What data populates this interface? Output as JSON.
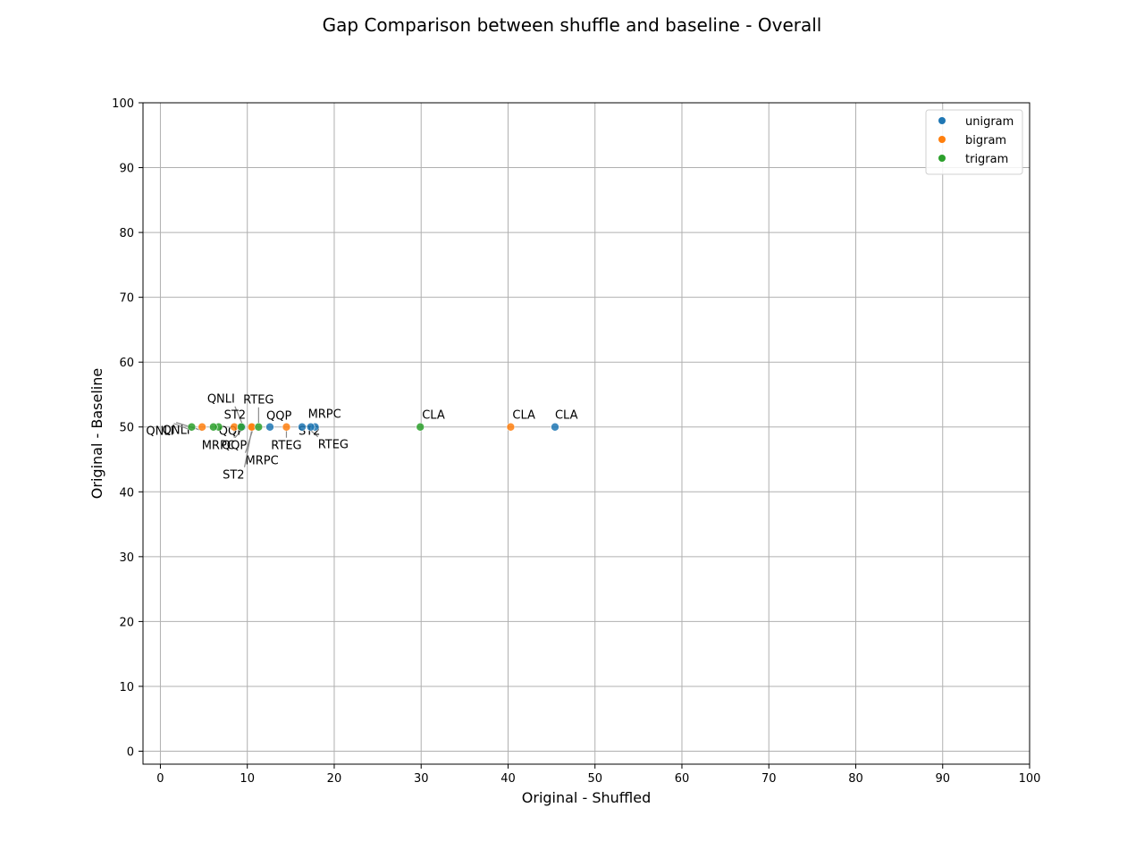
{
  "chart_data": {
    "type": "scatter",
    "title": "Gap Comparison between shuffle and baseline - Overall",
    "xlabel": "Original - Shuffled",
    "ylabel": "Original - Baseline",
    "xlim": [
      -2,
      100
    ],
    "ylim": [
      -2,
      100
    ],
    "xticks": [
      "0",
      "10",
      "20",
      "30",
      "40",
      "50",
      "60",
      "70",
      "80",
      "90",
      "100"
    ],
    "yticks": [
      "0",
      "10",
      "20",
      "30",
      "40",
      "50",
      "60",
      "70",
      "80",
      "90",
      "100"
    ],
    "grid": true,
    "legend_position": "top-right",
    "series": [
      {
        "name": "unigram",
        "color": "#1f77b4",
        "points": [
          {
            "label": "CLA",
            "x": 45.4,
            "y": 50
          },
          {
            "label": "MRPC",
            "x": 17.8,
            "y": 50
          },
          {
            "label": "RTEG",
            "x": 17.3,
            "y": 50
          },
          {
            "label": "ST2",
            "x": 16.3,
            "y": 50
          },
          {
            "label": "QQP",
            "x": 12.6,
            "y": 50
          },
          {
            "label": "QNLI",
            "x": 9.4,
            "y": 50
          }
        ]
      },
      {
        "name": "bigram",
        "color": "#ff7f0e",
        "points": [
          {
            "label": "CLA",
            "x": 40.3,
            "y": 50
          },
          {
            "label": "RTEG",
            "x": 14.5,
            "y": 50
          },
          {
            "label": "MRPC",
            "x": 10.6,
            "y": 50
          },
          {
            "label": "ST2",
            "x": 10.5,
            "y": 50
          },
          {
            "label": "QQP",
            "x": 8.5,
            "y": 50
          },
          {
            "label": "QNLI",
            "x": 4.8,
            "y": 50
          }
        ]
      },
      {
        "name": "trigram",
        "color": "#2ca02c",
        "points": [
          {
            "label": "CLA",
            "x": 29.9,
            "y": 50
          },
          {
            "label": "RTEG",
            "x": 11.3,
            "y": 50
          },
          {
            "label": "MRPC",
            "x": 9.3,
            "y": 50
          },
          {
            "label": "ST2",
            "x": 6.7,
            "y": 50
          },
          {
            "label": "QQP",
            "x": 6.1,
            "y": 50
          },
          {
            "label": "QNLI",
            "x": 3.6,
            "y": 50
          }
        ]
      }
    ]
  }
}
